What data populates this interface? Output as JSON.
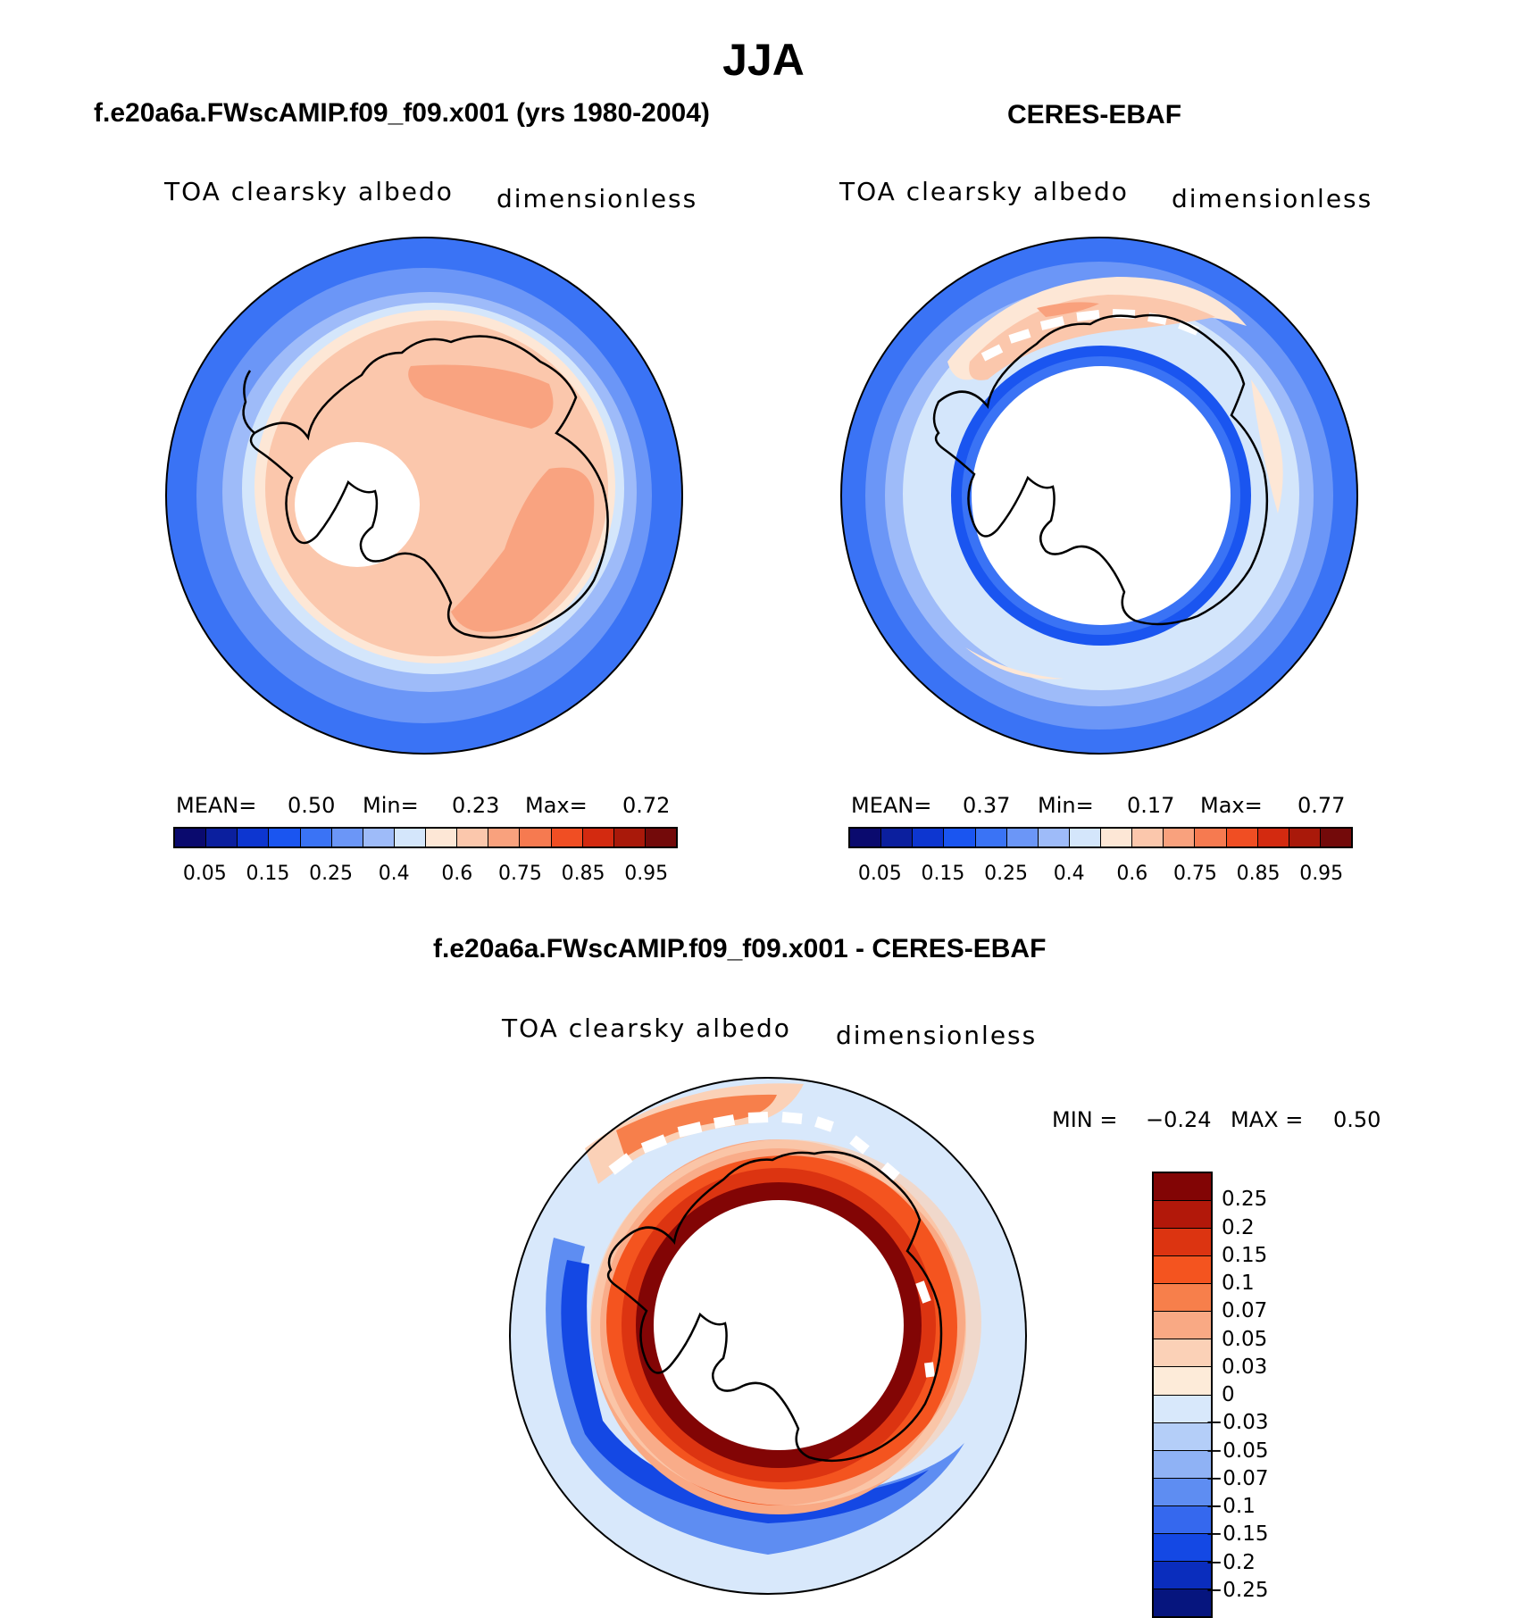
{
  "figure": {
    "title": "JJA",
    "panels": [
      {
        "id": "model",
        "subtitle": "f.e20a6a.FWscAMIP.f09_f09.x001 (yrs 1980-2004)",
        "variable": "TOA clearsky albedo",
        "units": "dimensionless",
        "stats": {
          "mean_label": "MEAN=",
          "mean": "0.50",
          "min_label": "Min=",
          "min": "0.23",
          "max_label": "Max=",
          "max": "0.72"
        },
        "pattern": {
          "outer_rim_level": 3,
          "bands": [
            {
              "level": 4
            },
            {
              "level": 5
            },
            {
              "level": 6
            },
            {
              "level": 7
            },
            {
              "level": 8
            },
            {
              "level": 9
            },
            {
              "level": 10
            }
          ],
          "hole_fraction": 0.26,
          "hole_offset": "upper-left"
        }
      },
      {
        "id": "obs",
        "subtitle": "CERES-EBAF",
        "variable": "TOA clearsky albedo",
        "units": "dimensionless",
        "stats": {
          "mean_label": "MEAN=",
          "mean": "0.37",
          "min_label": "Min=",
          "min": "0.17",
          "max_label": "Max=",
          "max": "0.77"
        },
        "pattern": {
          "outer_rim_level": 3,
          "bands": [
            {
              "level": 4
            },
            {
              "level": 5
            },
            {
              "level": 6
            },
            {
              "level": 7
            },
            {
              "level": 3
            }
          ],
          "hole_fraction": 0.56
        }
      }
    ],
    "abs_colorbar": {
      "colors": [
        "#0a0a6e",
        "#0b1f9e",
        "#0d36d0",
        "#1a55f0",
        "#3a73f5",
        "#6b96f7",
        "#9ebbf9",
        "#d4e6fb",
        "#fde7d6",
        "#fbc7ac",
        "#f9a17d",
        "#f67a50",
        "#f04e23",
        "#d32a10",
        "#a9190a",
        "#730a0a"
      ],
      "tick_labels": [
        "0.05",
        "0.15",
        "0.25",
        "0.4",
        "0.6",
        "0.75",
        "0.85",
        "0.95"
      ]
    },
    "diff_panel": {
      "subtitle": "f.e20a6a.FWscAMIP.f09_f09.x001 - CERES-EBAF",
      "variable": "TOA clearsky albedo",
      "units": "dimensionless",
      "stats": {
        "min_label": "MIN =",
        "min": "−0.24",
        "max_label": "MAX =",
        "max": "0.50"
      },
      "colorbar": {
        "colors": [
          "#820505",
          "#b2180a",
          "#dc3411",
          "#f4541f",
          "#f77f4b",
          "#f9a984",
          "#fbd1b7",
          "#fdebd9",
          "#d8e8fb",
          "#b4cef8",
          "#8fb2f5",
          "#5e8df2",
          "#3568ee",
          "#1448e4",
          "#0a2dbd",
          "#06157e"
        ],
        "tick_labels": [
          "0.25",
          "0.2",
          "0.15",
          "0.1",
          "0.07",
          "0.05",
          "0.03",
          "0",
          "−0.03",
          "−0.05",
          "−0.07",
          "−0.1",
          "−0.15",
          "−0.2",
          "−0.25"
        ]
      }
    }
  }
}
